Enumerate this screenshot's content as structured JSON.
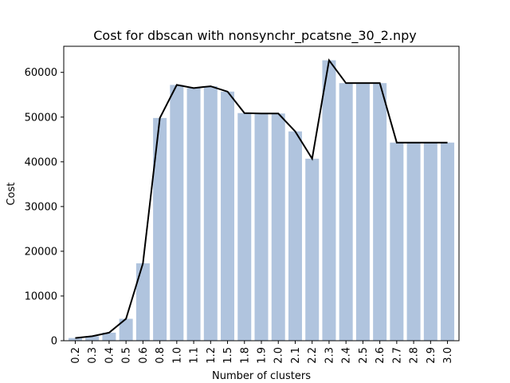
{
  "chart_data": {
    "type": "bar",
    "title": "Cost for dbscan with nonsynchr_pcatsne_30_2.npy",
    "xlabel": "Number of clusters",
    "ylabel": "Cost",
    "categories": [
      "0.2",
      "0.3",
      "0.4",
      "0.5",
      "0.6",
      "0.8",
      "1.0",
      "1.1",
      "1.2",
      "1.5",
      "1.8",
      "1.9",
      "2.0",
      "2.1",
      "2.2",
      "2.3",
      "2.4",
      "2.5",
      "2.6",
      "2.7",
      "2.8",
      "2.9",
      "3.0"
    ],
    "values": [
      600,
      1000,
      1800,
      4900,
      17300,
      49800,
      57200,
      56500,
      56900,
      55700,
      50900,
      50800,
      50800,
      46800,
      40700,
      62700,
      57600,
      57600,
      57600,
      44300,
      44300,
      44300,
      44300
    ],
    "line_values": [
      600,
      1000,
      1800,
      4900,
      17300,
      49800,
      57200,
      56500,
      56900,
      55700,
      50900,
      50800,
      50800,
      46800,
      40700,
      62700,
      57600,
      57600,
      57600,
      44300,
      44300,
      44300,
      44300
    ],
    "ylim": [
      0,
      65835
    ],
    "yticks": [
      0,
      10000,
      20000,
      30000,
      40000,
      50000,
      60000
    ],
    "grid": false,
    "colors": {
      "bar": "#b0c4de",
      "line": "#000000",
      "axis": "#000000"
    }
  }
}
